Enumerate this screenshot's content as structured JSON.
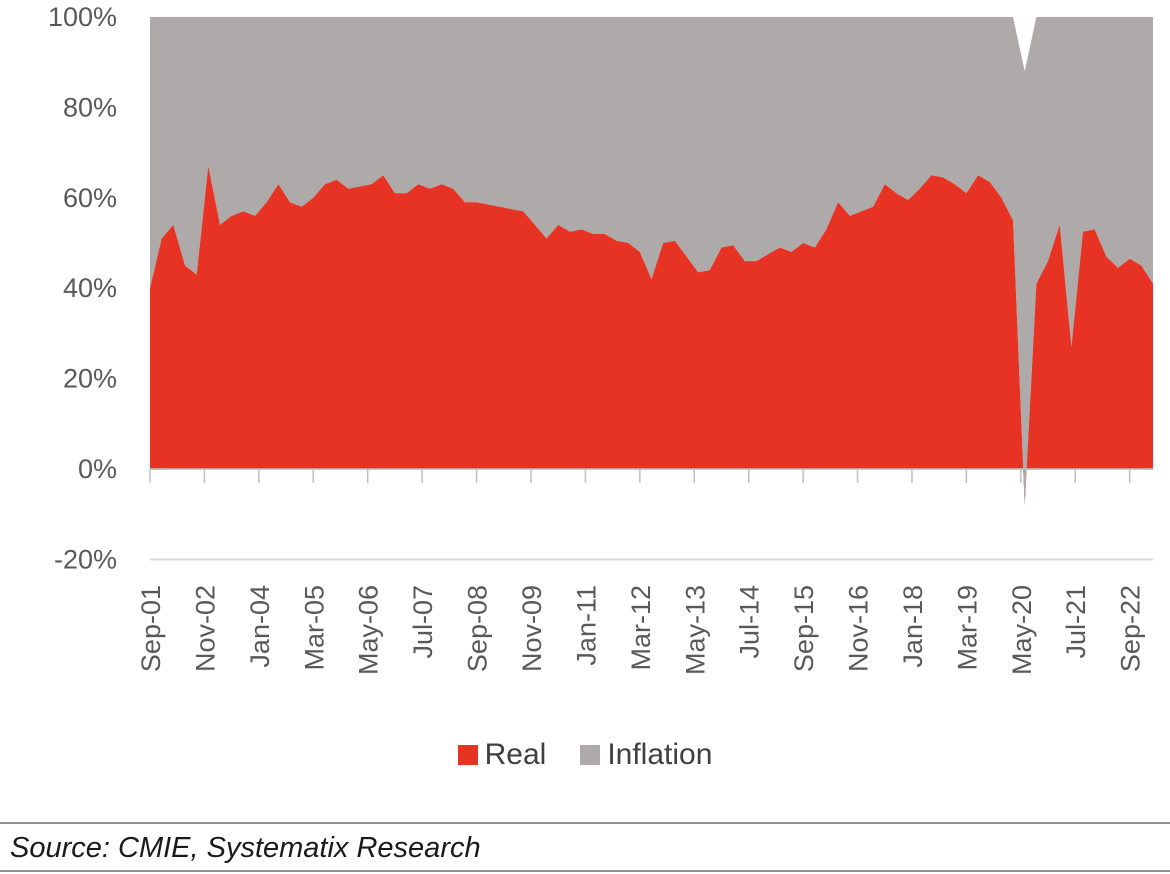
{
  "chart_data": {
    "type": "area",
    "stacked": "percent",
    "title": "",
    "xlabel": "",
    "ylabel": "",
    "ylim": [
      -20,
      100
    ],
    "yticks": [
      "100%",
      "80%",
      "60%",
      "40%",
      "20%",
      "0%",
      "-20%"
    ],
    "xticks": [
      "Sep-01",
      "Nov-02",
      "Jan-04",
      "Mar-05",
      "May-06",
      "Jul-07",
      "Sep-08",
      "Nov-09",
      "Jan-11",
      "Mar-12",
      "May-13",
      "Jul-14",
      "Sep-15",
      "Nov-16",
      "Jan-18",
      "Mar-19",
      "May-20",
      "Jul-21",
      "Sep-22"
    ],
    "grid": false,
    "legend_position": "bottom",
    "series": [
      {
        "name": "Real",
        "color": "#e63323",
        "points": [
          [
            "Sep-01",
            40
          ],
          [
            "Dec-01",
            51
          ],
          [
            "Mar-02",
            54
          ],
          [
            "Jun-02",
            45
          ],
          [
            "Sep-02",
            43
          ],
          [
            "Dec-02",
            67
          ],
          [
            "Mar-03",
            54
          ],
          [
            "Jun-03",
            56
          ],
          [
            "Sep-03",
            57
          ],
          [
            "Dec-03",
            56
          ],
          [
            "Mar-04",
            59
          ],
          [
            "Jun-04",
            63
          ],
          [
            "Sep-04",
            59
          ],
          [
            "Dec-04",
            58
          ],
          [
            "Mar-05",
            60
          ],
          [
            "Jun-05",
            63
          ],
          [
            "Sep-05",
            64
          ],
          [
            "Dec-05",
            62
          ],
          [
            "Mar-06",
            62.5
          ],
          [
            "Jun-06",
            63
          ],
          [
            "Sep-06",
            65
          ],
          [
            "Dec-06",
            61
          ],
          [
            "Mar-07",
            61
          ],
          [
            "Jun-07",
            63
          ],
          [
            "Sep-07",
            62
          ],
          [
            "Dec-07",
            63
          ],
          [
            "Mar-08",
            62
          ],
          [
            "Jun-08",
            59
          ],
          [
            "Sep-08",
            59
          ],
          [
            "Dec-08",
            58.5
          ],
          [
            "Mar-09",
            58
          ],
          [
            "Jun-09",
            57.5
          ],
          [
            "Sep-09",
            57
          ],
          [
            "Dec-09",
            54
          ],
          [
            "Mar-10",
            51
          ],
          [
            "Jun-10",
            54
          ],
          [
            "Sep-10",
            52.5
          ],
          [
            "Dec-10",
            53
          ],
          [
            "Mar-11",
            52
          ],
          [
            "Jun-11",
            52
          ],
          [
            "Sep-11",
            50.5
          ],
          [
            "Dec-11",
            50
          ],
          [
            "Mar-12",
            48
          ],
          [
            "Jun-12",
            42
          ],
          [
            "Sep-12",
            50
          ],
          [
            "Dec-12",
            50.5
          ],
          [
            "Mar-13",
            47
          ],
          [
            "Jun-13",
            43.5
          ],
          [
            "Sep-13",
            44
          ],
          [
            "Dec-13",
            49
          ],
          [
            "Mar-14",
            49.5
          ],
          [
            "Jun-14",
            46
          ],
          [
            "Sep-14",
            46
          ],
          [
            "Dec-14",
            47.5
          ],
          [
            "Mar-15",
            49
          ],
          [
            "Jun-15",
            48
          ],
          [
            "Sep-15",
            50
          ],
          [
            "Dec-15",
            49
          ],
          [
            "Mar-16",
            53
          ],
          [
            "Jun-16",
            59
          ],
          [
            "Sep-16",
            56
          ],
          [
            "Dec-16",
            57
          ],
          [
            "Mar-17",
            58
          ],
          [
            "Jun-17",
            63
          ],
          [
            "Sep-17",
            61
          ],
          [
            "Dec-17",
            59.5
          ],
          [
            "Mar-18",
            62
          ],
          [
            "Jun-18",
            65
          ],
          [
            "Sep-18",
            64.5
          ],
          [
            "Dec-18",
            63
          ],
          [
            "Mar-19",
            61
          ],
          [
            "Jun-19",
            65
          ],
          [
            "Sep-19",
            63.5
          ],
          [
            "Dec-19",
            60
          ],
          [
            "Mar-20",
            55
          ],
          [
            "Jun-20",
            -8
          ],
          [
            "Sep-20",
            41
          ],
          [
            "Dec-20",
            46
          ],
          [
            "Mar-21",
            54
          ],
          [
            "Jun-21",
            27
          ],
          [
            "Sep-21",
            52.5
          ],
          [
            "Dec-21",
            53
          ],
          [
            "Mar-22",
            47
          ],
          [
            "Jun-22",
            44.5
          ],
          [
            "Sep-22",
            46.5
          ],
          [
            "Dec-22",
            45
          ],
          [
            "Mar-23",
            41
          ]
        ]
      },
      {
        "name": "Inflation",
        "color": "#aeaaaa",
        "points": [
          [
            "Sep-01",
            60
          ],
          [
            "Dec-01",
            49
          ],
          [
            "Mar-02",
            46
          ],
          [
            "Jun-02",
            55
          ],
          [
            "Sep-02",
            57
          ],
          [
            "Dec-02",
            33
          ],
          [
            "Mar-03",
            46
          ],
          [
            "Jun-03",
            44
          ],
          [
            "Sep-03",
            43
          ],
          [
            "Dec-03",
            44
          ],
          [
            "Mar-04",
            41
          ],
          [
            "Jun-04",
            37
          ],
          [
            "Sep-04",
            41
          ],
          [
            "Dec-04",
            42
          ],
          [
            "Mar-05",
            40
          ],
          [
            "Jun-05",
            37
          ],
          [
            "Sep-05",
            36
          ],
          [
            "Dec-05",
            38
          ],
          [
            "Mar-06",
            37.5
          ],
          [
            "Jun-06",
            37
          ],
          [
            "Sep-06",
            35
          ],
          [
            "Dec-06",
            39
          ],
          [
            "Mar-07",
            39
          ],
          [
            "Jun-07",
            37
          ],
          [
            "Sep-07",
            38
          ],
          [
            "Dec-07",
            37
          ],
          [
            "Mar-08",
            38
          ],
          [
            "Jun-08",
            41
          ],
          [
            "Sep-08",
            41
          ],
          [
            "Dec-08",
            41.5
          ],
          [
            "Mar-09",
            42
          ],
          [
            "Jun-09",
            42.5
          ],
          [
            "Sep-09",
            43
          ],
          [
            "Dec-09",
            46
          ],
          [
            "Mar-10",
            49
          ],
          [
            "Jun-10",
            46
          ],
          [
            "Sep-10",
            47.5
          ],
          [
            "Dec-10",
            47
          ],
          [
            "Mar-11",
            48
          ],
          [
            "Jun-11",
            48
          ],
          [
            "Sep-11",
            49.5
          ],
          [
            "Dec-11",
            50
          ],
          [
            "Mar-12",
            52
          ],
          [
            "Jun-12",
            58
          ],
          [
            "Sep-12",
            50
          ],
          [
            "Dec-12",
            49.5
          ],
          [
            "Mar-13",
            53
          ],
          [
            "Jun-13",
            56.5
          ],
          [
            "Sep-13",
            56
          ],
          [
            "Dec-13",
            51
          ],
          [
            "Mar-14",
            50.5
          ],
          [
            "Jun-14",
            54
          ],
          [
            "Sep-14",
            54
          ],
          [
            "Dec-14",
            52.5
          ],
          [
            "Mar-15",
            51
          ],
          [
            "Jun-15",
            52
          ],
          [
            "Sep-15",
            50
          ],
          [
            "Dec-15",
            51
          ],
          [
            "Mar-16",
            47
          ],
          [
            "Jun-16",
            41
          ],
          [
            "Sep-16",
            44
          ],
          [
            "Dec-16",
            43
          ],
          [
            "Mar-17",
            42
          ],
          [
            "Jun-17",
            37
          ],
          [
            "Sep-17",
            39
          ],
          [
            "Dec-17",
            40.5
          ],
          [
            "Mar-18",
            38
          ],
          [
            "Jun-18",
            35
          ],
          [
            "Sep-18",
            35.5
          ],
          [
            "Dec-18",
            37
          ],
          [
            "Mar-19",
            39
          ],
          [
            "Jun-19",
            35
          ],
          [
            "Sep-19",
            36.5
          ],
          [
            "Dec-19",
            40
          ],
          [
            "Mar-20",
            45
          ],
          [
            "Jun-20",
            96
          ],
          [
            "Sep-20",
            59
          ],
          [
            "Dec-20",
            54
          ],
          [
            "Mar-21",
            46
          ],
          [
            "Jun-21",
            73
          ],
          [
            "Sep-21",
            47.5
          ],
          [
            "Dec-21",
            47
          ],
          [
            "Mar-22",
            53
          ],
          [
            "Jun-22",
            55.5
          ],
          [
            "Sep-22",
            53.5
          ],
          [
            "Dec-22",
            55
          ],
          [
            "Mar-23",
            59
          ]
        ]
      }
    ]
  },
  "legend": {
    "real_label": "Real",
    "inflation_label": "Inflation"
  },
  "source": {
    "text": "Source: CMIE, Systematix Research"
  }
}
